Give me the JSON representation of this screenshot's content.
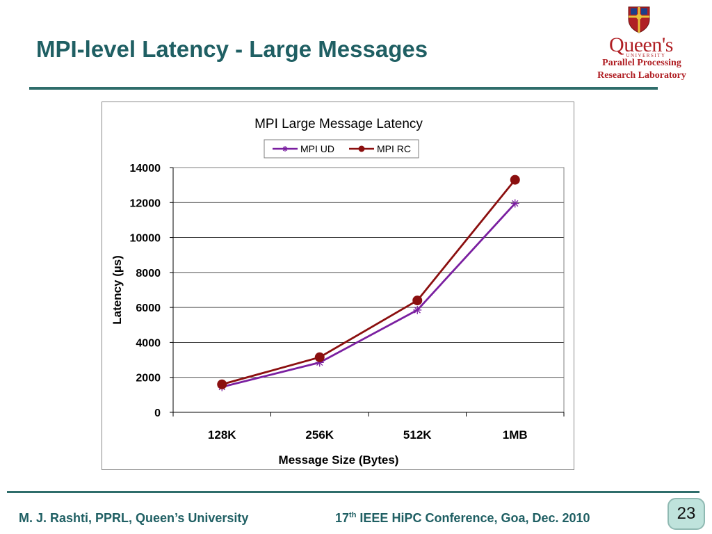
{
  "slide": {
    "title": "MPI-level Latency - Large Messages",
    "page_number": "23"
  },
  "logo": {
    "name": "Queen's",
    "subtitle": "UNIVERSITY",
    "lab_line1": "Parallel Processing",
    "lab_line2": "Research Laboratory"
  },
  "footer": {
    "left": "M. J. Rashti, PPRL, Queen’s University",
    "right_prefix": "17",
    "right_sup": "th",
    "right_rest": " IEEE HiPC Conference, Goa, Dec. 2010"
  },
  "colors": {
    "title": "#1f5f63",
    "rule": "#2f6d6b",
    "mpi_ud": "#7a1fa0",
    "mpi_rc": "#8b0f0f"
  },
  "chart_data": {
    "type": "line",
    "title": "MPI Large Message Latency",
    "xlabel": "Message Size (Bytes)",
    "ylabel": "Latency (µs)",
    "categories": [
      "128K",
      "256K",
      "512K",
      "1MB"
    ],
    "ylim": [
      0,
      14000
    ],
    "yticks": [
      0,
      2000,
      4000,
      6000,
      8000,
      10000,
      12000,
      14000
    ],
    "grid": true,
    "legend": "top-center",
    "series": [
      {
        "name": "MPI UD",
        "marker": "star",
        "color": "#7a1fa0",
        "values": [
          1450,
          2850,
          5850,
          11950
        ]
      },
      {
        "name": "MPI RC",
        "marker": "circle",
        "color": "#8b0f0f",
        "values": [
          1600,
          3150,
          6400,
          13300
        ]
      }
    ]
  }
}
